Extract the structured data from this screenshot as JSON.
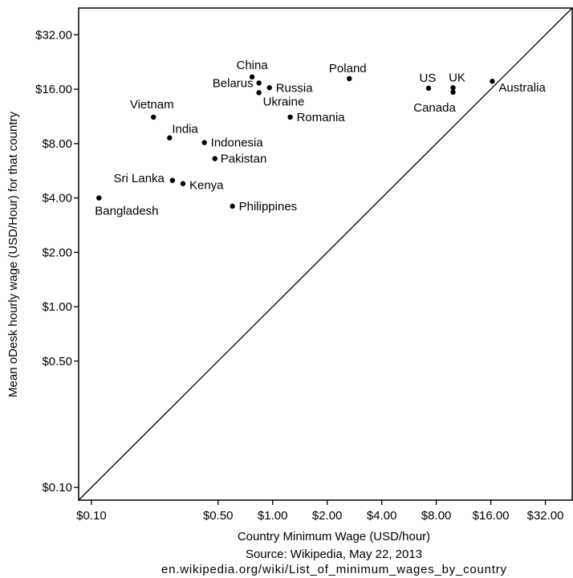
{
  "chart_data": {
    "type": "scatter",
    "title": "",
    "xlabel": "Country Minimum Wage (USD/hour)",
    "ylabel": "Mean oDesk hourly wage (USD/Hour) for that country",
    "caption_lines": [
      "Source: Wikipedia, May 22, 2013",
      "en.wikipedia.org/wiki/List_of_minimum_wages_by_country"
    ],
    "x_scale": "log2",
    "y_scale": "log2",
    "xlim": [
      0.085,
      45
    ],
    "ylim": [
      0.085,
      45
    ],
    "x_ticks": [
      0.1,
      0.5,
      1,
      2,
      4,
      8,
      16,
      32
    ],
    "x_tick_labels": [
      "$0.10",
      "$0.50",
      "$1.00",
      "$2.00",
      "$4.00",
      "$8.00",
      "$16.00",
      "$32.00"
    ],
    "y_ticks": [
      0.1,
      0.5,
      1,
      2,
      4,
      8,
      16,
      32
    ],
    "y_tick_labels": [
      "$0.10",
      "$0.50",
      "$1.00",
      "$2.00",
      "$4.00",
      "$8.00",
      "$16.00",
      "$32.00"
    ],
    "reference_line": "y = x",
    "grid": false,
    "points": [
      {
        "label": "China",
        "x": 0.77,
        "y": 18.7
      },
      {
        "label": "Belarus",
        "x": 0.84,
        "y": 17.3
      },
      {
        "label": "Russia",
        "x": 0.96,
        "y": 16.3
      },
      {
        "label": "Ukraine",
        "x": 0.84,
        "y": 15.3
      },
      {
        "label": "Poland",
        "x": 2.65,
        "y": 18.3
      },
      {
        "label": "US",
        "x": 7.25,
        "y": 16.2
      },
      {
        "label": "UK",
        "x": 9.9,
        "y": 16.3
      },
      {
        "label": "Canada",
        "x": 9.9,
        "y": 15.4
      },
      {
        "label": "Australia",
        "x": 16.3,
        "y": 17.7
      },
      {
        "label": "Vietnam",
        "x": 0.22,
        "y": 11.2
      },
      {
        "label": "Romania",
        "x": 1.25,
        "y": 11.2
      },
      {
        "label": "India",
        "x": 0.27,
        "y": 8.6
      },
      {
        "label": "Indonesia",
        "x": 0.42,
        "y": 8.1
      },
      {
        "label": "Pakistan",
        "x": 0.48,
        "y": 6.6
      },
      {
        "label": "Sri Lanka",
        "x": 0.28,
        "y": 5.0
      },
      {
        "label": "Kenya",
        "x": 0.32,
        "y": 4.8
      },
      {
        "label": "Bangladesh",
        "x": 0.11,
        "y": 4.0
      },
      {
        "label": "Philippines",
        "x": 0.6,
        "y": 3.6
      }
    ]
  }
}
